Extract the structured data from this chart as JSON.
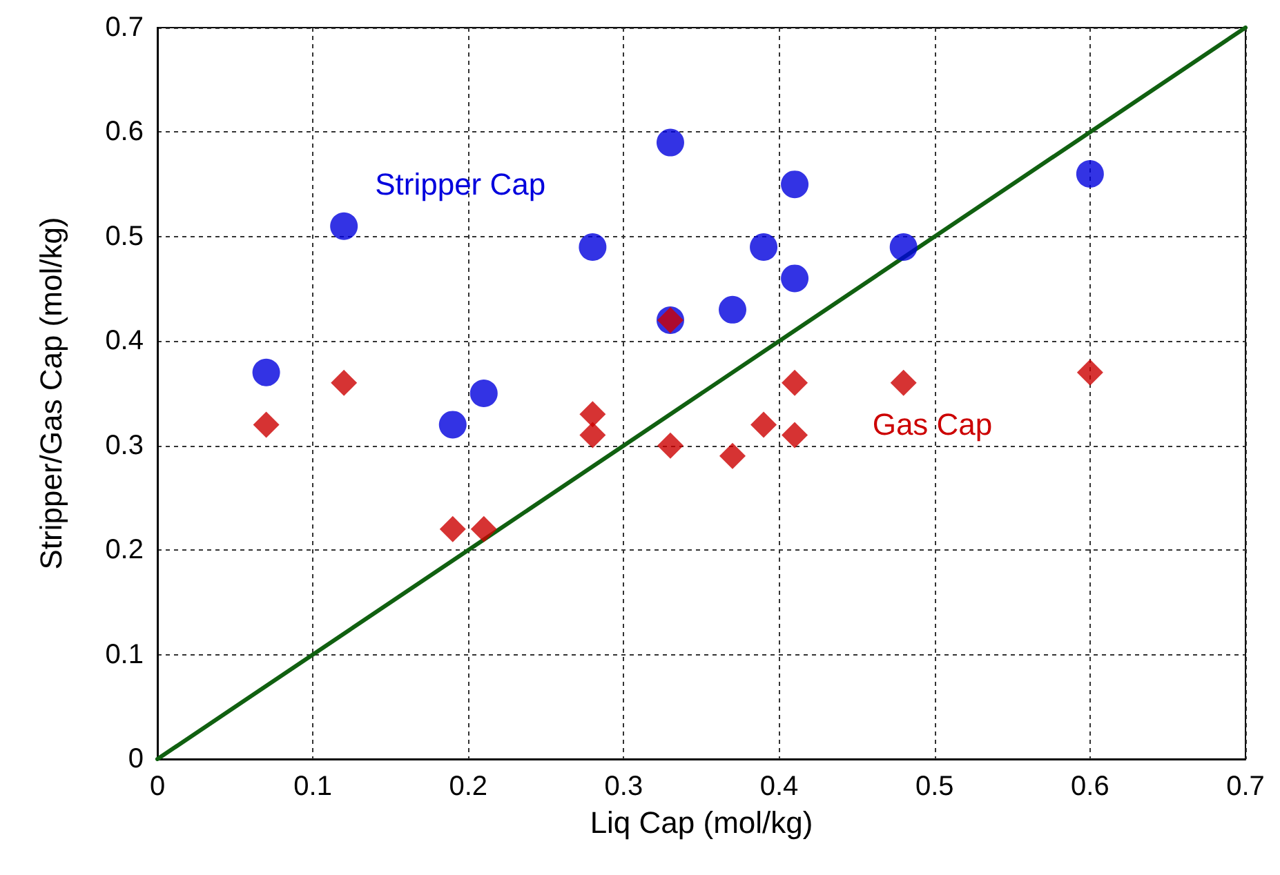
{
  "chart_data": {
    "type": "scatter",
    "xlabel": "Liq Cap (mol/kg)",
    "ylabel": "Stripper/Gas Cap (mol/kg)",
    "xlim": [
      0,
      0.7
    ],
    "ylim": [
      0,
      0.7
    ],
    "xticks": [
      0,
      0.1,
      0.2,
      0.3,
      0.4,
      0.5,
      0.6,
      0.7
    ],
    "yticks": [
      0,
      0.1,
      0.2,
      0.3,
      0.4,
      0.5,
      0.6,
      0.7
    ],
    "grid": true,
    "legend": false,
    "series": [
      {
        "name": "Stripper Cap",
        "color": "#0000dd",
        "marker": "circle",
        "x": [
          0.07,
          0.12,
          0.19,
          0.21,
          0.28,
          0.33,
          0.33,
          0.37,
          0.39,
          0.41,
          0.41,
          0.48,
          0.6
        ],
        "values": [
          0.37,
          0.51,
          0.32,
          0.35,
          0.49,
          0.59,
          0.42,
          0.43,
          0.49,
          0.55,
          0.46,
          0.49,
          0.56
        ]
      },
      {
        "name": "Gas Cap",
        "color": "#cc0000",
        "marker": "diamond",
        "x": [
          0.07,
          0.12,
          0.19,
          0.21,
          0.28,
          0.28,
          0.33,
          0.33,
          0.37,
          0.39,
          0.41,
          0.41,
          0.48,
          0.6
        ],
        "values": [
          0.32,
          0.36,
          0.22,
          0.22,
          0.33,
          0.31,
          0.42,
          0.3,
          0.29,
          0.32,
          0.36,
          0.31,
          0.36,
          0.37
        ]
      },
      {
        "type": "line",
        "color": "#106010",
        "marker": "none",
        "line_style": "solid",
        "x": [
          0,
          0.7
        ],
        "values": [
          0,
          0.7
        ]
      }
    ]
  }
}
